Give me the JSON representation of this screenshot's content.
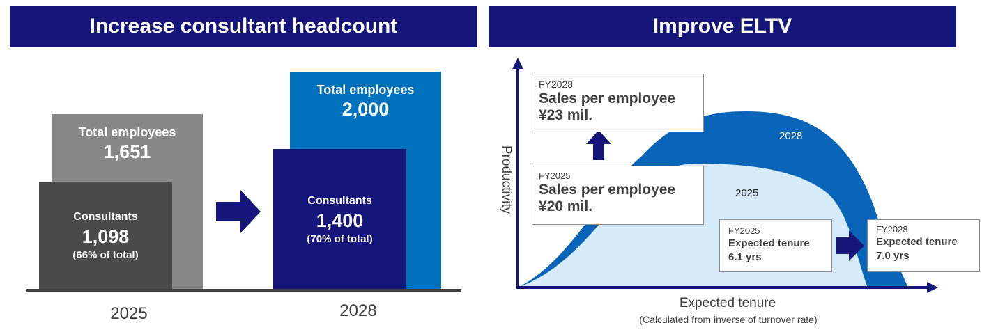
{
  "left": {
    "title": "Increase consultant headcount",
    "y2025": {
      "year": "2025",
      "total_label": "Total employees",
      "total_value": "1,651",
      "consultants_label": "Consultants",
      "consultants_value": "1,098",
      "consultants_share": "(66% of total)"
    },
    "y2028": {
      "year": "2028",
      "total_label": "Total employees",
      "total_value": "2,000",
      "consultants_label": "Consultants",
      "consultants_value": "1,400",
      "consultants_share": "(70% of total)"
    },
    "colors": {
      "total_2025": "#878787",
      "consultants_2025": "#4a4a4a",
      "total_2028": "#0071bc",
      "consultants_2028": "#16167a",
      "arrow": "#16167a"
    }
  },
  "right": {
    "title": "Improve ELTV",
    "y_axis_label": "Productivity",
    "x_axis_label": "Expected tenure",
    "x_axis_note": "(Calculated from inverse of turnover rate)",
    "curve_label_2028": "2028",
    "curve_label_2025": "2025",
    "sales_fy2028": {
      "fy": "FY2028",
      "line1": "Sales per employee",
      "line2": "¥23 mil."
    },
    "sales_fy2025": {
      "fy": "FY2025",
      "line1": "Sales per employee",
      "line2": "¥20 mil."
    },
    "tenure_fy2025": {
      "fy": "FY2025",
      "line1": "Expected tenure",
      "line2": "6.1 yrs"
    },
    "tenure_fy2028": {
      "fy": "FY2028",
      "line1": "Expected tenure",
      "line2": "7.0 yrs"
    },
    "colors": {
      "curve_2028": "#0a65b8",
      "curve_2025": "#d6ebf9",
      "axis": "#16167a"
    }
  }
}
